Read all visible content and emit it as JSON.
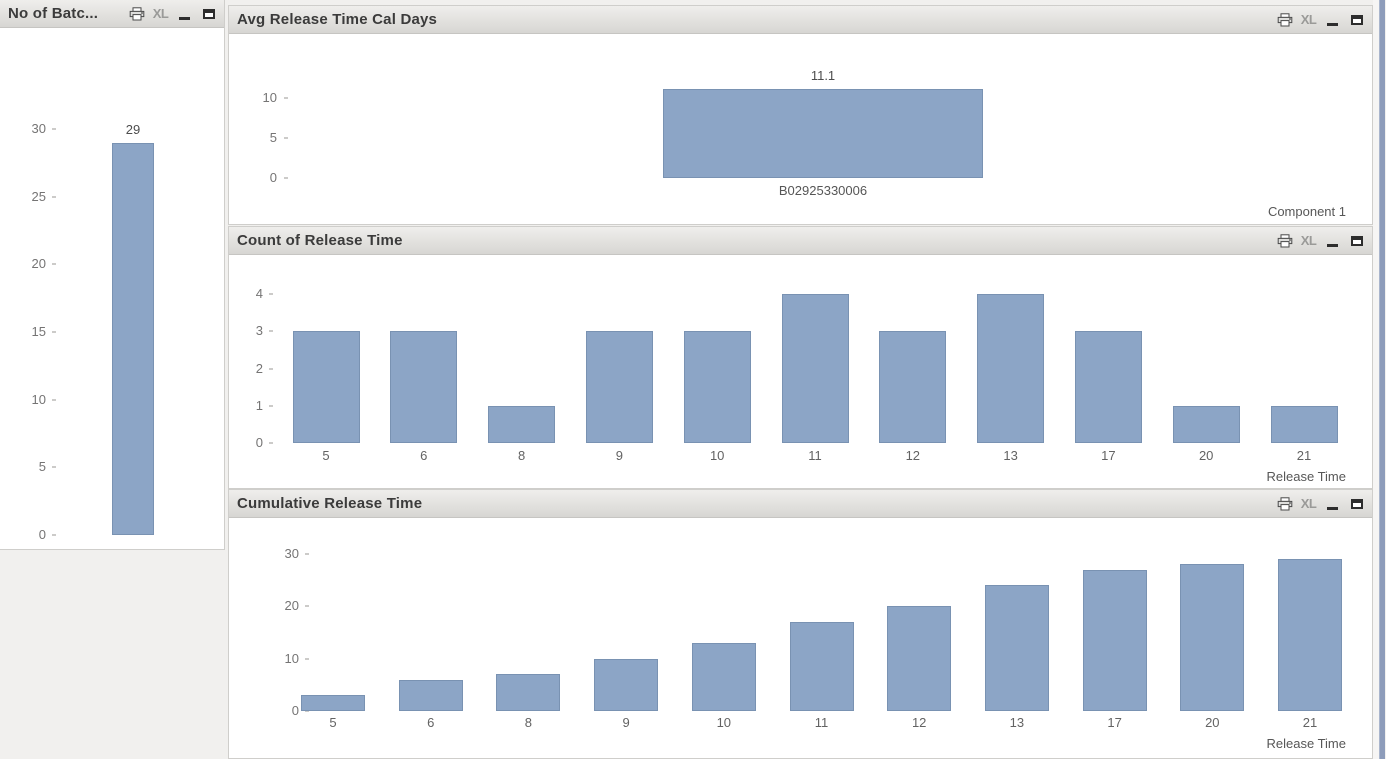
{
  "colors": {
    "bar": "#8ca5c6",
    "caption_text": "#3b3b3b",
    "window_edge_strip": "#8d9cba"
  },
  "caption_icons": [
    {
      "name": "printer-icon"
    },
    {
      "name": "xl-export-icon",
      "label": "XL"
    },
    {
      "name": "minimize-icon"
    },
    {
      "name": "maximize-icon"
    }
  ],
  "panels": [
    {
      "title": "No of Batc..."
    },
    {
      "title": "Avg Release Time Cal Days"
    },
    {
      "title": "Count of Release Time"
    },
    {
      "title": "Cumulative Release Time"
    }
  ],
  "chart_data": [
    {
      "type": "bar",
      "title": "No of Batc...",
      "categories": [
        ""
      ],
      "values": [
        29
      ],
      "value_labels": [
        "29"
      ],
      "show_value_labels": true,
      "show_x_labels": false,
      "yticks": [
        0,
        5,
        10,
        15,
        20,
        25,
        30
      ],
      "ylim": [
        0,
        32
      ],
      "xlabel": "",
      "ylabel": ""
    },
    {
      "type": "bar",
      "title": "Avg Release Time Cal Days",
      "categories": [
        "B02925330006"
      ],
      "values": [
        11.1
      ],
      "value_labels": [
        "11.1"
      ],
      "show_value_labels": true,
      "show_x_labels": true,
      "yticks": [
        0,
        5,
        10
      ],
      "ylim": [
        0,
        12.5
      ],
      "xlabel": "",
      "right_label": "Component 1",
      "ylabel": ""
    },
    {
      "type": "bar",
      "title": "Count of Release Time",
      "categories": [
        "5",
        "6",
        "8",
        "9",
        "10",
        "11",
        "12",
        "13",
        "17",
        "20",
        "21"
      ],
      "values": [
        3,
        3,
        1,
        3,
        3,
        4,
        3,
        4,
        3,
        1,
        1
      ],
      "show_value_labels": false,
      "show_x_labels": true,
      "yticks": [
        0,
        1,
        2,
        3,
        4
      ],
      "ylim": [
        0,
        4.5
      ],
      "xlabel": "Release Time",
      "right_label": "Release Time",
      "ylabel": ""
    },
    {
      "type": "bar",
      "title": "Cumulative Release Time",
      "categories": [
        "5",
        "6",
        "8",
        "9",
        "10",
        "11",
        "12",
        "13",
        "17",
        "20",
        "21"
      ],
      "values": [
        3,
        6,
        7,
        10,
        13,
        17,
        20,
        24,
        27,
        28,
        29
      ],
      "show_value_labels": false,
      "show_x_labels": true,
      "yticks": [
        0,
        10,
        20,
        30
      ],
      "ylim": [
        0,
        32
      ],
      "xlabel": "Release Time",
      "right_label": "Release Time",
      "ylabel": ""
    }
  ]
}
